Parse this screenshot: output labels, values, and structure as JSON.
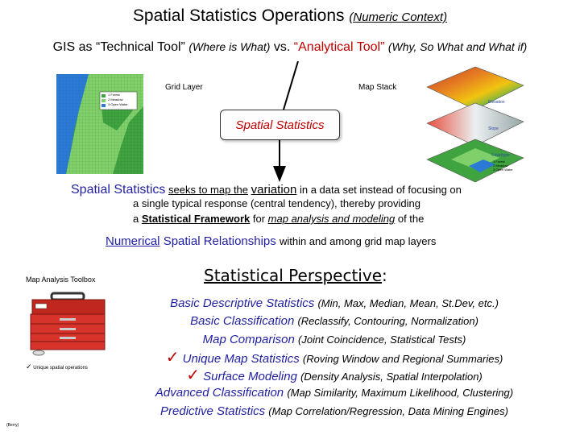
{
  "title": {
    "main": "Spatial Statistics Operations",
    "sub": "(Numeric Context)"
  },
  "subtitle": {
    "part1": "GIS as “Technical Tool”",
    "part1_note": "(Where is What)",
    "vs": "vs.",
    "part2": "“Analytical Tool”",
    "part2_note": "(Why, So What and What if)"
  },
  "diagram": {
    "grid_layer_label": "Grid Layer",
    "map_stack_label": "Map Stack",
    "box_label": "Spatial Statistics",
    "legend_grid": [
      "1  Forest",
      "2  Meadow",
      "3  Open Water"
    ],
    "layers": [
      "Elevation",
      "Slope",
      "Covertype"
    ],
    "covertype_legend": [
      "1  Forest",
      "2  Meadow",
      "3  Open Water"
    ]
  },
  "definition": {
    "term": "Spatial Statistics",
    "line1a": "seeks to map the",
    "variation": "variation",
    "line1b": "in a data set instead of focusing on",
    "line2": "a single typical response (central tendency), thereby providing",
    "line3a": "a",
    "framework": "Statistical Framework",
    "line3b": "for",
    "modeling": "map analysis and modeling",
    "line3c": "of the"
  },
  "numerical": {
    "word": "Numerical",
    "phrase": "Spatial Relationships",
    "rest": "within and among grid map layers"
  },
  "toolbox": {
    "label": "Map Analysis Toolbox",
    "note_check": "✓",
    "note": "Unique spatial operations",
    "credit": "(Berry)"
  },
  "perspective": {
    "title": "Statistical Perspective",
    "colon": ":"
  },
  "list": [
    {
      "check": false,
      "label": "Basic Descriptive Statistics",
      "detail": "(Min, Max, Median, Mean, St.Dev, etc.)"
    },
    {
      "check": false,
      "label": "Basic Classification",
      "detail": "(Reclassify, Contouring, Normalization)"
    },
    {
      "check": false,
      "label": "Map Comparison",
      "detail": "(Joint Coincidence, Statistical Tests)"
    },
    {
      "check": true,
      "label": "Unique Map Statistics",
      "detail": "(Roving Window and Regional Summaries)"
    },
    {
      "check": true,
      "label": "Surface Modeling",
      "detail": "(Density Analysis, Spatial Interpolation)"
    },
    {
      "check": false,
      "label": "Advanced Classification",
      "detail": "(Map Similarity, Maximum Likelihood, Clustering)"
    },
    {
      "check": false,
      "label": "Predictive Statistics",
      "detail": "(Map Correlation/Regression, Data Mining Engines)"
    }
  ],
  "colors": {
    "accent_red": "#c00000",
    "heading_blue": "#1f1fa0",
    "forest_green": "#3fa33f",
    "meadow_green": "#7fd06a",
    "water_blue": "#2b7bd6"
  }
}
